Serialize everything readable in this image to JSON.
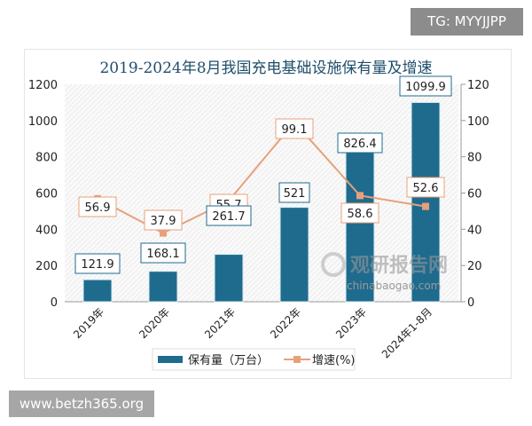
{
  "watermark_top": "TG: MYYJJPP",
  "watermark_bottom": "www.betzh365.org",
  "logo_text": "观研报告网",
  "logo_url_text": "chinabaogao.com",
  "chart_data": {
    "type": "bar+line",
    "title": "2019-2024年8月我国充电基础设施保有量及增速",
    "categories": [
      "2019年",
      "2020年",
      "2021年",
      "2022年",
      "2023年",
      "2024年1-8月"
    ],
    "series": [
      {
        "name": "保有量（万台）",
        "type": "bar",
        "axis": "left",
        "values": [
          121.9,
          168.1,
          261.7,
          521,
          826.4,
          1099.9
        ],
        "color": "#1f6b8e"
      },
      {
        "name": "增速(%)",
        "type": "line",
        "axis": "right",
        "values": [
          56.9,
          37.9,
          55.7,
          99.1,
          58.6,
          52.6
        ],
        "color": "#e8a07a"
      }
    ],
    "y_left": {
      "range": [
        0,
        1200
      ],
      "ticks": [
        "0",
        "200",
        "400",
        "600",
        "800",
        "1000",
        "1200"
      ]
    },
    "y_right": {
      "range": [
        0,
        120
      ],
      "ticks": [
        "0",
        "20",
        "40",
        "60",
        "80",
        "100",
        "120"
      ]
    },
    "legend_position": "bottom",
    "grid": false
  }
}
